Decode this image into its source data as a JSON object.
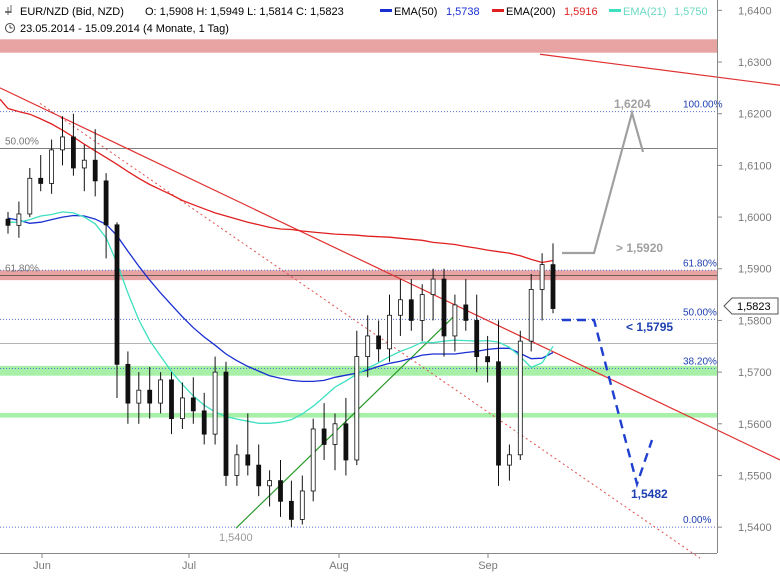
{
  "header": {
    "instrument": "EUR/NZD (Bid, NZD)",
    "ohlc": "O: 1,5908  H: 1,5949  L: 1,5814  C: 1,5823",
    "range": "23.05.2014 - 15.09.2014 (4 Monate, 1 Tag)",
    "indicators": [
      {
        "label": "EMA(50)",
        "value": "1,5738",
        "color": "#1a2fd1"
      },
      {
        "label": "EMA(200)",
        "value": "1,5916",
        "color": "#e02020"
      },
      {
        "label": "EMA(21)",
        "value": "1,5750",
        "color": "#3fe0c0"
      }
    ]
  },
  "annotations": {
    "low": "1,5400",
    "target_high": "1,6204",
    "resistance": "> 1,5920",
    "support": "< 1,5795",
    "target_low": "1,5482",
    "last_price": "1,5823"
  },
  "chart_data": {
    "type": "candlestick",
    "x_ticks": [
      "Jun",
      "Jul",
      "Aug",
      "Sep"
    ],
    "y_ticks": [
      "1,6400",
      "1,6300",
      "1,6200",
      "1,6100",
      "1,6000",
      "1,5900",
      "1,5800",
      "1,5700",
      "1,5600",
      "1,5500",
      "1,5400"
    ],
    "ylim": [
      1.535,
      1.642
    ],
    "fib_levels": [
      {
        "label": "100.00%",
        "value": 1.6204
      },
      {
        "label": "61.80%",
        "value": 1.5897
      },
      {
        "label": "50.00%",
        "value": 1.5802
      },
      {
        "label": "38.20%",
        "value": 1.5707
      },
      {
        "label": "0.00%",
        "value": 1.54
      }
    ],
    "left_levels": [
      {
        "label": "50.00%",
        "value": 1.6133
      },
      {
        "label": "61.80%",
        "value": 1.5887
      }
    ],
    "zones": [
      {
        "from": 1.6318,
        "to": 1.6344,
        "color": "#e8a3a3"
      },
      {
        "from": 1.5878,
        "to": 1.5897,
        "color": "#e8a3a3"
      },
      {
        "from": 1.5693,
        "to": 1.5712,
        "color": "#a8f0a8"
      },
      {
        "from": 1.5612,
        "to": 1.5621,
        "color": "#a8f0a8"
      }
    ],
    "series": [
      {
        "name": "EMA(50)",
        "color": "#1a2fd1",
        "values": [
          1.5998,
          1.5994,
          1.5988,
          1.599,
          1.5995,
          1.6,
          1.6003,
          1.6002,
          1.5996,
          1.5986,
          1.5964,
          1.5934,
          1.5905,
          1.5878,
          1.5853,
          1.583,
          1.5807,
          1.5786,
          1.5768,
          1.5752,
          1.5735,
          1.5722,
          1.5711,
          1.5702,
          1.5693,
          1.5688,
          1.5684,
          1.5682,
          1.5682,
          1.5684,
          1.569,
          1.5694,
          1.5698,
          1.5704,
          1.5711,
          1.5717,
          1.5721,
          1.5727,
          1.5733,
          1.5735,
          1.5735,
          1.5735,
          1.5738,
          1.574,
          1.5744,
          1.5746,
          1.5746,
          1.5736,
          1.5726,
          1.5727,
          1.5738
        ]
      },
      {
        "name": "EMA(21)",
        "color": "#3fe0c0",
        "values": [
          1.599,
          1.599,
          1.5995,
          1.6002,
          1.6005,
          1.601,
          1.6008,
          1.6,
          1.5987,
          1.596,
          1.5911,
          1.5853,
          1.5801,
          1.5761,
          1.5731,
          1.5701,
          1.5676,
          1.5654,
          1.5636,
          1.5623,
          1.5614,
          1.5609,
          1.5605,
          1.5601,
          1.5601,
          1.5603,
          1.5608,
          1.5619,
          1.5634,
          1.5652,
          1.5671,
          1.5683,
          1.5696,
          1.5708,
          1.5718,
          1.573,
          1.574,
          1.5748,
          1.5758,
          1.5757,
          1.576,
          1.5762,
          1.5761,
          1.576,
          1.5761,
          1.5758,
          1.5748,
          1.573,
          1.5709,
          1.5718,
          1.575
        ]
      },
      {
        "name": "EMA(200)",
        "color": "#e02020",
        "values": [
          1.621,
          1.6204,
          1.6199,
          1.619,
          1.618,
          1.6168,
          1.6155,
          1.6141,
          1.6128,
          1.6115,
          1.6102,
          1.6088,
          1.6075,
          1.6063,
          1.6053,
          1.6043,
          1.6032,
          1.6024,
          1.6016,
          1.6008,
          1.6002,
          1.5996,
          1.599,
          1.5985,
          1.598,
          1.5977,
          1.5976,
          1.5973,
          1.5971,
          1.5969,
          1.5967,
          1.5966,
          1.5965,
          1.5963,
          1.5962,
          1.5961,
          1.5959,
          1.5957,
          1.5955,
          1.5951,
          1.5949,
          1.5947,
          1.5943,
          1.594,
          1.5936,
          1.5933,
          1.593,
          1.5925,
          1.5918,
          1.5912,
          1.5916
        ]
      }
    ],
    "candles": [
      {
        "o": 1.5996,
        "h": 1.601,
        "l": 1.5968,
        "c": 1.5984
      },
      {
        "o": 1.5984,
        "h": 1.603,
        "l": 1.596,
        "c": 1.6006
      },
      {
        "o": 1.6006,
        "h": 1.6095,
        "l": 1.6,
        "c": 1.6075
      },
      {
        "o": 1.6075,
        "h": 1.612,
        "l": 1.605,
        "c": 1.6065
      },
      {
        "o": 1.6065,
        "h": 1.615,
        "l": 1.6045,
        "c": 1.613
      },
      {
        "o": 1.613,
        "h": 1.6195,
        "l": 1.61,
        "c": 1.6155
      },
      {
        "o": 1.6155,
        "h": 1.62,
        "l": 1.608,
        "c": 1.6095
      },
      {
        "o": 1.6095,
        "h": 1.614,
        "l": 1.605,
        "c": 1.611
      },
      {
        "o": 1.611,
        "h": 1.617,
        "l": 1.604,
        "c": 1.607
      },
      {
        "o": 1.607,
        "h": 1.6085,
        "l": 1.592,
        "c": 1.5985
      },
      {
        "o": 1.5985,
        "h": 1.599,
        "l": 1.565,
        "c": 1.5715
      },
      {
        "o": 1.5715,
        "h": 1.574,
        "l": 1.56,
        "c": 1.564
      },
      {
        "o": 1.564,
        "h": 1.57,
        "l": 1.56,
        "c": 1.5665
      },
      {
        "o": 1.5665,
        "h": 1.571,
        "l": 1.561,
        "c": 1.564
      },
      {
        "o": 1.564,
        "h": 1.57,
        "l": 1.562,
        "c": 1.5685
      },
      {
        "o": 1.5685,
        "h": 1.57,
        "l": 1.558,
        "c": 1.561
      },
      {
        "o": 1.561,
        "h": 1.568,
        "l": 1.559,
        "c": 1.565
      },
      {
        "o": 1.565,
        "h": 1.569,
        "l": 1.56,
        "c": 1.5625
      },
      {
        "o": 1.5625,
        "h": 1.566,
        "l": 1.556,
        "c": 1.558
      },
      {
        "o": 1.558,
        "h": 1.573,
        "l": 1.556,
        "c": 1.57
      },
      {
        "o": 1.57,
        "h": 1.572,
        "l": 1.548,
        "c": 1.55
      },
      {
        "o": 1.55,
        "h": 1.556,
        "l": 1.548,
        "c": 1.554
      },
      {
        "o": 1.554,
        "h": 1.562,
        "l": 1.55,
        "c": 1.552
      },
      {
        "o": 1.552,
        "h": 1.556,
        "l": 1.546,
        "c": 1.548
      },
      {
        "o": 1.548,
        "h": 1.551,
        "l": 1.544,
        "c": 1.549
      },
      {
        "o": 1.549,
        "h": 1.553,
        "l": 1.542,
        "c": 1.545
      },
      {
        "o": 1.545,
        "h": 1.549,
        "l": 1.54,
        "c": 1.5415
      },
      {
        "o": 1.5415,
        "h": 1.55,
        "l": 1.5405,
        "c": 1.547
      },
      {
        "o": 1.547,
        "h": 1.561,
        "l": 1.545,
        "c": 1.559
      },
      {
        "o": 1.559,
        "h": 1.564,
        "l": 1.553,
        "c": 1.556
      },
      {
        "o": 1.556,
        "h": 1.562,
        "l": 1.551,
        "c": 1.56
      },
      {
        "o": 1.56,
        "h": 1.565,
        "l": 1.55,
        "c": 1.553
      },
      {
        "o": 1.553,
        "h": 1.578,
        "l": 1.552,
        "c": 1.573
      },
      {
        "o": 1.573,
        "h": 1.581,
        "l": 1.569,
        "c": 1.577
      },
      {
        "o": 1.577,
        "h": 1.58,
        "l": 1.572,
        "c": 1.5745
      },
      {
        "o": 1.5745,
        "h": 1.585,
        "l": 1.572,
        "c": 1.581
      },
      {
        "o": 1.581,
        "h": 1.588,
        "l": 1.577,
        "c": 1.584
      },
      {
        "o": 1.584,
        "h": 1.588,
        "l": 1.578,
        "c": 1.58
      },
      {
        "o": 1.58,
        "h": 1.587,
        "l": 1.576,
        "c": 1.585
      },
      {
        "o": 1.585,
        "h": 1.59,
        "l": 1.58,
        "c": 1.588
      },
      {
        "o": 1.588,
        "h": 1.59,
        "l": 1.573,
        "c": 1.577
      },
      {
        "o": 1.577,
        "h": 1.585,
        "l": 1.574,
        "c": 1.583
      },
      {
        "o": 1.583,
        "h": 1.588,
        "l": 1.578,
        "c": 1.58
      },
      {
        "o": 1.58,
        "h": 1.585,
        "l": 1.57,
        "c": 1.573
      },
      {
        "o": 1.573,
        "h": 1.577,
        "l": 1.568,
        "c": 1.572
      },
      {
        "o": 1.572,
        "h": 1.58,
        "l": 1.548,
        "c": 1.552
      },
      {
        "o": 1.552,
        "h": 1.556,
        "l": 1.549,
        "c": 1.554
      },
      {
        "o": 1.554,
        "h": 1.578,
        "l": 1.553,
        "c": 1.576
      },
      {
        "o": 1.576,
        "h": 1.589,
        "l": 1.574,
        "c": 1.586
      },
      {
        "o": 1.586,
        "h": 1.593,
        "l": 1.58,
        "c": 1.5908
      },
      {
        "o": 1.5908,
        "h": 1.5949,
        "l": 1.5814,
        "c": 1.5823
      }
    ]
  }
}
